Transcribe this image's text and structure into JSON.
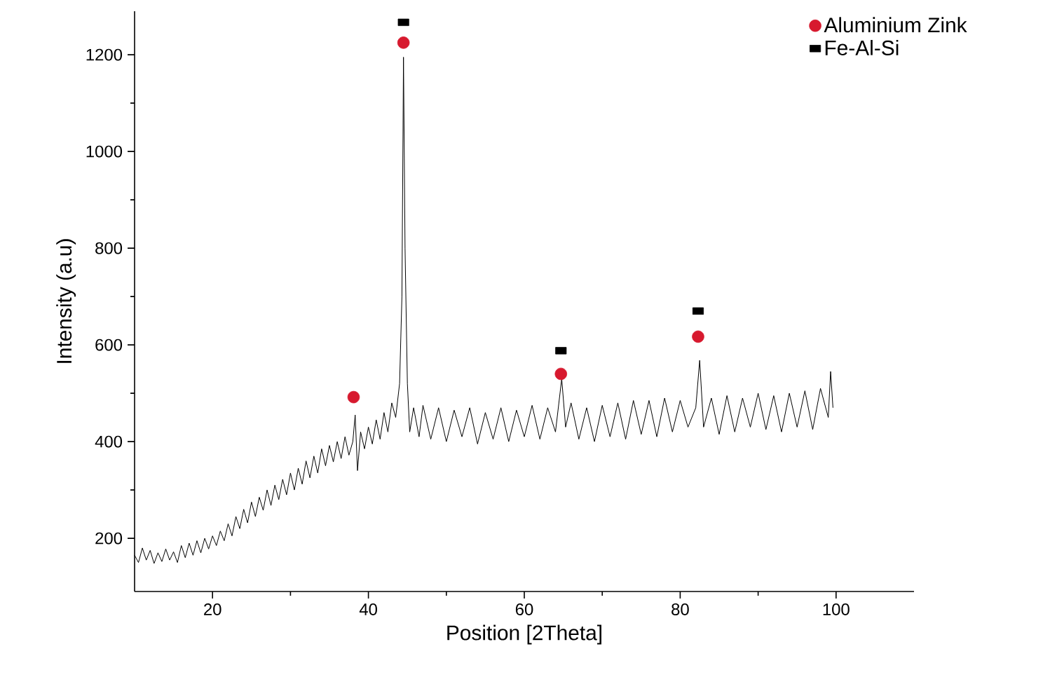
{
  "chart_data": {
    "type": "line",
    "xlabel": "Position [2Theta]",
    "ylabel": "Intensity (a.u)",
    "xlim": [
      10,
      110
    ],
    "ylim": [
      90,
      1290
    ],
    "xticks": [
      20,
      40,
      60,
      80,
      100
    ],
    "yticks": [
      200,
      400,
      600,
      800,
      1000,
      1200
    ],
    "grid": false,
    "legend": "top right",
    "series": [
      {
        "color": "#000000",
        "x": [
          10,
          10.5,
          11,
          11.5,
          12,
          12.5,
          13,
          13.5,
          14,
          14.5,
          15,
          15.5,
          16,
          16.5,
          17,
          17.5,
          18,
          18.5,
          19,
          19.5,
          20,
          20.5,
          21,
          21.5,
          22,
          22.5,
          23,
          23.5,
          24,
          24.5,
          25,
          25.5,
          26,
          26.5,
          27,
          27.5,
          28,
          28.5,
          29,
          29.5,
          30,
          30.5,
          31,
          31.5,
          32,
          32.5,
          33,
          33.5,
          34,
          34.5,
          35,
          35.5,
          36,
          36.5,
          37,
          37.5,
          38,
          38.3,
          38.6,
          39,
          39.5,
          40,
          40.5,
          41,
          41.5,
          42,
          42.5,
          43,
          43.5,
          44,
          44.3,
          44.5,
          44.7,
          45,
          45.3,
          45.8,
          46.5,
          47,
          48,
          49,
          50,
          51,
          52,
          53,
          54,
          55,
          56,
          57,
          58,
          59,
          60,
          61,
          62,
          63,
          64,
          64.8,
          65.3,
          66,
          67,
          68,
          69,
          70,
          71,
          72,
          73,
          74,
          75,
          76,
          77,
          78,
          79,
          80,
          81,
          82,
          82.5,
          83,
          84,
          85,
          86,
          87,
          88,
          89,
          90,
          91,
          92,
          93,
          94,
          95,
          96,
          97,
          98,
          99,
          99.3,
          99.6
        ],
        "values": [
          165,
          150,
          180,
          155,
          175,
          148,
          170,
          152,
          178,
          155,
          172,
          150,
          185,
          160,
          190,
          165,
          195,
          170,
          200,
          178,
          205,
          185,
          215,
          195,
          230,
          205,
          245,
          220,
          260,
          232,
          275,
          245,
          285,
          258,
          300,
          268,
          310,
          280,
          322,
          290,
          335,
          300,
          345,
          312,
          360,
          325,
          370,
          335,
          385,
          350,
          392,
          358,
          400,
          365,
          410,
          372,
          400,
          455,
          340,
          420,
          385,
          430,
          395,
          445,
          405,
          460,
          420,
          480,
          450,
          520,
          700,
          1195,
          800,
          520,
          420,
          470,
          410,
          475,
          405,
          470,
          400,
          465,
          410,
          470,
          395,
          460,
          405,
          470,
          400,
          465,
          410,
          475,
          405,
          470,
          420,
          530,
          430,
          480,
          405,
          470,
          400,
          475,
          410,
          480,
          405,
          485,
          415,
          485,
          410,
          490,
          420,
          485,
          430,
          470,
          568,
          430,
          490,
          415,
          495,
          420,
          490,
          430,
          500,
          425,
          495,
          420,
          500,
          430,
          505,
          425,
          510,
          450,
          545,
          470
        ]
      },
      {
        "type": "scatter",
        "name": "Aluminium Zink",
        "color": "#d7192e",
        "marker": "circle",
        "x": [
          38.1,
          44.5,
          64.7,
          82.3
        ],
        "values": [
          492,
          1225,
          540,
          617
        ]
      },
      {
        "type": "scatter",
        "name": "Fe-Al-Si",
        "color": "#000000",
        "marker": "square",
        "x": [
          44.5,
          64.7,
          82.3
        ],
        "values": [
          1267,
          588,
          670
        ]
      }
    ]
  }
}
